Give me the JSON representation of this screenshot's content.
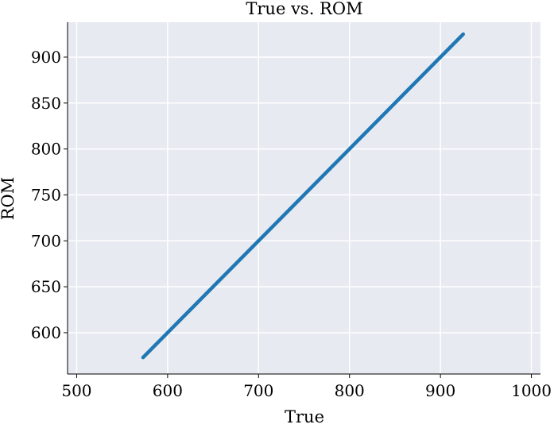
{
  "chart_data": {
    "type": "line",
    "title": "True vs. ROM",
    "xlabel": "True",
    "ylabel": "ROM",
    "xlim": [
      490,
      1010
    ],
    "ylim": [
      555,
      938
    ],
    "xticks": [
      500,
      600,
      700,
      800,
      900,
      1000
    ],
    "yticks": [
      600,
      650,
      700,
      750,
      800,
      850,
      900
    ],
    "grid": true,
    "series": [
      {
        "x": [
          573,
          925
        ],
        "y": [
          573,
          925
        ],
        "color": "#1f77b4"
      }
    ]
  },
  "colors": {
    "plot_background": "#e8eaf2",
    "grid": "#ffffff",
    "line": "#1f77b4",
    "axis": "#000000"
  }
}
